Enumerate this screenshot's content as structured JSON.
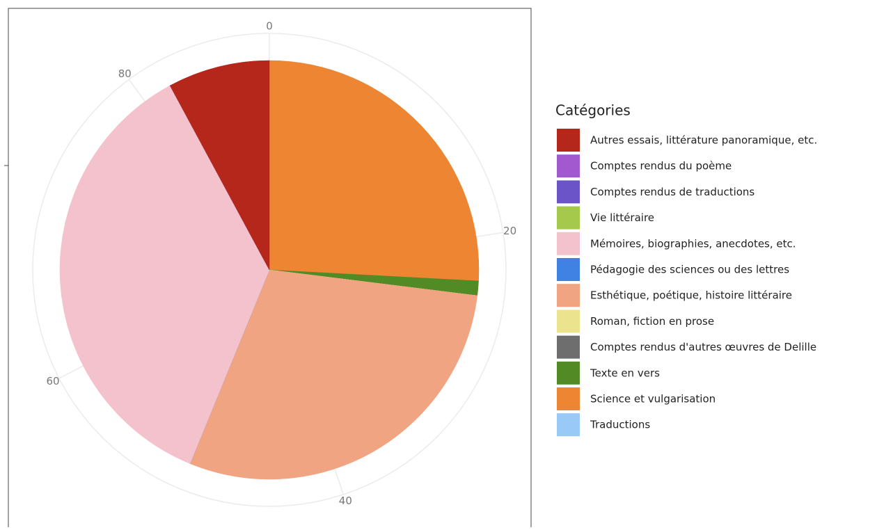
{
  "chart_data": {
    "type": "pie",
    "categories": [
      "Autres essais, littérature panoramique, etc.",
      "Comptes rendus du poème",
      "Comptes rendus de traductions",
      "Vie littéraire",
      "Mémoires, biographies, anecdotes, etc.",
      "Pédagogie des sciences ou des lettres",
      "Esthétique, poétique, histoire littéraire",
      "Roman, fiction en prose",
      "Comptes rendus d'autres œuvres de Delille",
      "Texte en vers",
      "Science et vulgarisation",
      "Traductions"
    ],
    "values": [
      7,
      0,
      0,
      0,
      32,
      0,
      26,
      0,
      0,
      1,
      23,
      0
    ],
    "colors": [
      "#b5271b",
      "#a259d0",
      "#6a54c8",
      "#a5c94a",
      "#f4c2cc",
      "#3f82e4",
      "#f0a482",
      "#ece38f",
      "#6e6e6e",
      "#528a26",
      "#ee8532",
      "#99c9f6"
    ],
    "legend_title": "Catégories",
    "thetalim": [
      0,
      89
    ],
    "thetaticks": [
      0,
      20,
      40,
      60,
      80
    ],
    "grid": true
  }
}
